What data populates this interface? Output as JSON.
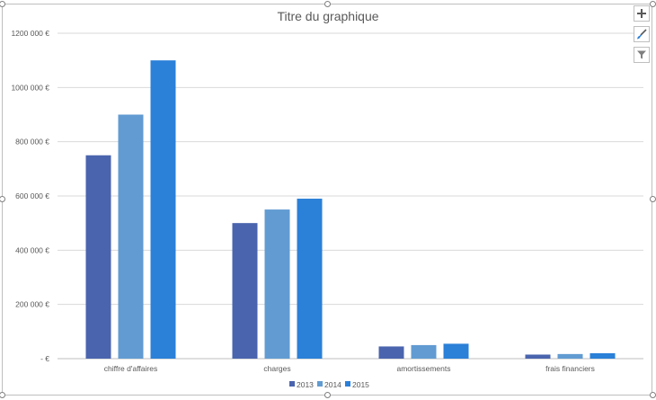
{
  "chart_data": {
    "type": "bar",
    "title": "Titre du graphique",
    "categories": [
      "chiffre d'affaires",
      "charges",
      "amortissements",
      "frais financiers"
    ],
    "series": [
      {
        "name": "2013",
        "color": "#4A64AE",
        "values": [
          750000,
          500000,
          45000,
          15000
        ]
      },
      {
        "name": "2014",
        "color": "#619BD2",
        "values": [
          900000,
          550000,
          50000,
          17000
        ]
      },
      {
        "name": "2015",
        "color": "#2B80D8",
        "values": [
          1100000,
          590000,
          55000,
          20000
        ]
      }
    ],
    "ylim": [
      0,
      1200000
    ],
    "yticks": [
      0,
      200000,
      400000,
      600000,
      800000,
      1000000,
      1200000
    ],
    "ytick_labels": [
      " -   €",
      "200 000 €",
      "400 000 €",
      "600 000 €",
      "800 000 €",
      "1000 000 €",
      "1200 000 €"
    ],
    "grid": true,
    "legend": "bottom"
  },
  "chart_tools": {
    "elements_icon": "plus-icon",
    "styles_icon": "brush-icon",
    "filter_icon": "filter-icon"
  }
}
